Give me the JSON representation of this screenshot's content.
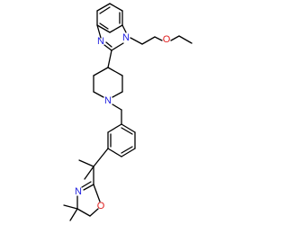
{
  "atom_labels": [
    "N",
    "N",
    "O",
    "N",
    "N",
    "O"
  ]
}
